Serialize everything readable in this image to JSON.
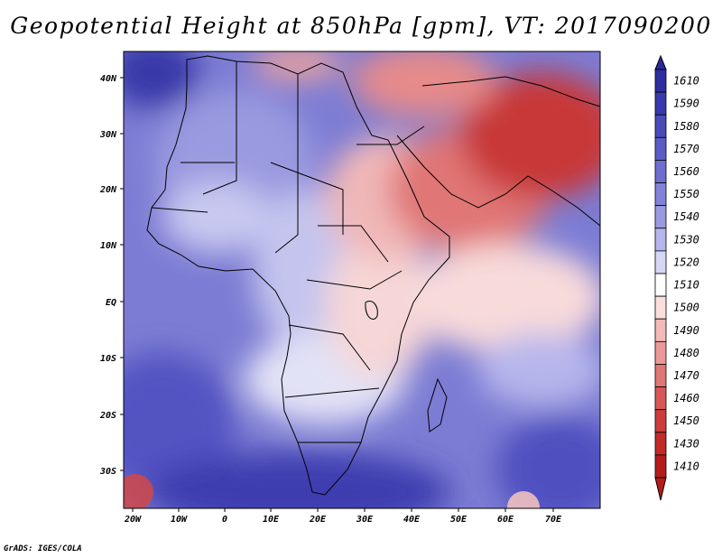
{
  "title": "Geopotential Height at 850hPa [gpm], VT: 2017090200",
  "footer": "GrADS: IGES/COLA",
  "axes": {
    "lon_ticks": [
      "20W",
      "10W",
      "0",
      "10E",
      "20E",
      "30E",
      "40E",
      "50E",
      "60E",
      "70E"
    ],
    "lat_ticks": [
      "40N",
      "30N",
      "20N",
      "10N",
      "EQ",
      "10S",
      "20S",
      "30S"
    ]
  },
  "colorbar": {
    "levels": [
      "1610",
      "1590",
      "1580",
      "1570",
      "1560",
      "1550",
      "1540",
      "1530",
      "1520",
      "1510",
      "1500",
      "1490",
      "1480",
      "1470",
      "1460",
      "1450",
      "1430",
      "1410"
    ],
    "colors": [
      "#2e2ea0",
      "#3939ad",
      "#4a4ab8",
      "#5c5cc4",
      "#6e6ece",
      "#8282d8",
      "#9a9ae2",
      "#b6b6ec",
      "#d6d6f5",
      "#ffffff",
      "#fbdede",
      "#f4b9b9",
      "#eb9898",
      "#e07676",
      "#d65858",
      "#cc3c3c",
      "#c02a2a",
      "#b41c1c"
    ]
  }
}
